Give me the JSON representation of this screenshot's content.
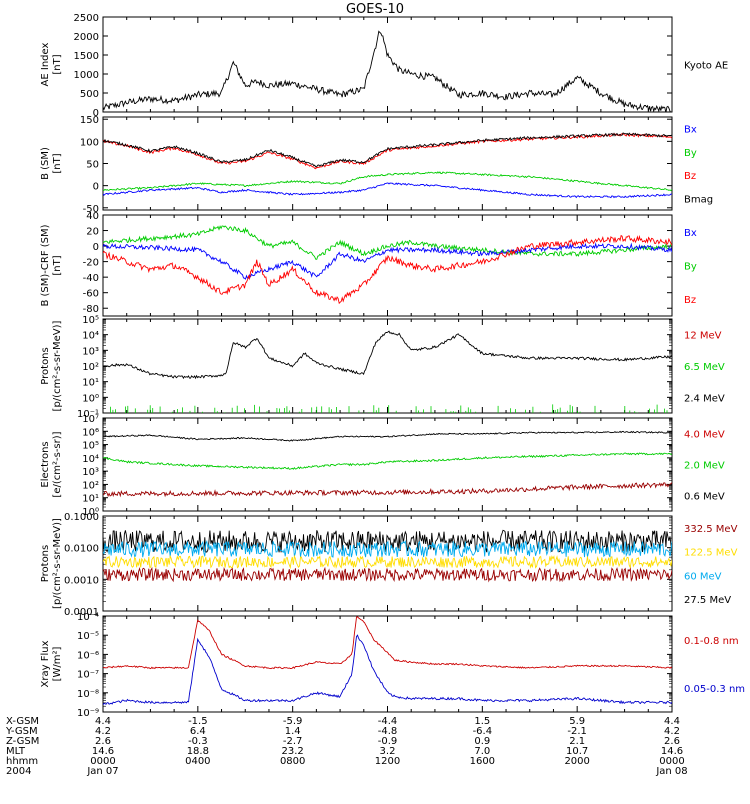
{
  "title": "GOES-10",
  "chart_data": {
    "type": "line",
    "x_ticks": [
      "0000",
      "0400",
      "0800",
      "1200",
      "1600",
      "2000",
      "0000"
    ],
    "x_dates": [
      "Jan 07",
      "Jan 08"
    ],
    "panels": [
      {
        "id": "ae",
        "ylabel": [
          "AE Index",
          "[nT]"
        ],
        "log": false,
        "ylim": [
          0,
          2500
        ],
        "ticks": [
          "2500",
          "2000",
          "1500",
          "1000",
          "500",
          "0"
        ],
        "tick_vals": [
          2500,
          2000,
          1500,
          1000,
          500,
          0
        ],
        "legend": [
          {
            "label": "Kyoto AE",
            "color": "#000000"
          }
        ],
        "series": [
          {
            "name": "Kyoto AE",
            "color": "#000000",
            "noise": 90,
            "x": [
              0,
              1,
              2,
              3,
              4,
              5,
              5.5,
              6,
              6.5,
              7,
              8,
              9,
              10,
              11,
              11.7,
              12,
              12.5,
              13,
              14,
              15,
              16,
              17,
              18,
              19,
              20,
              21,
              22,
              23,
              24
            ],
            "y": [
              100,
              250,
              350,
              300,
              450,
              500,
              1300,
              700,
              800,
              700,
              750,
              600,
              450,
              600,
              2200,
              1500,
              1100,
              1000,
              900,
              450,
              500,
              400,
              500,
              450,
              900,
              500,
              200,
              100,
              50
            ]
          }
        ]
      },
      {
        "id": "bsm",
        "ylabel": [
          "B (SM)",
          "[nT]"
        ],
        "log": false,
        "ylim": [
          -55,
          155
        ],
        "ticks": [
          "150",
          "100",
          "50",
          "0",
          "-50"
        ],
        "tick_vals": [
          150,
          100,
          50,
          0,
          -50
        ],
        "legend": [
          {
            "label": "Bx",
            "color": "#0000ff"
          },
          {
            "label": "By",
            "color": "#00cc00"
          },
          {
            "label": "Bz",
            "color": "#ff0000"
          },
          {
            "label": "Bmag",
            "color": "#000000"
          }
        ],
        "series": [
          {
            "name": "By",
            "color": "#00cc00",
            "noise": 2,
            "x": [
              0,
              2,
              4,
              6,
              8,
              10,
              11,
              12,
              14,
              16,
              18,
              20,
              22,
              24
            ],
            "y": [
              -10,
              -5,
              5,
              0,
              10,
              5,
              20,
              25,
              30,
              25,
              20,
              10,
              0,
              -10
            ]
          },
          {
            "name": "Bx",
            "color": "#0000ff",
            "noise": 2,
            "x": [
              0,
              2,
              4,
              5,
              6,
              8,
              10,
              11,
              12,
              14,
              16,
              18,
              20,
              22,
              24
            ],
            "y": [
              -20,
              -10,
              -5,
              -15,
              -10,
              -20,
              -15,
              -10,
              5,
              0,
              -10,
              -20,
              -25,
              -25,
              -20
            ]
          },
          {
            "name": "Bz",
            "color": "#ff0000",
            "noise": 3,
            "x": [
              0,
              1,
              2,
              3,
              4,
              5,
              6,
              7,
              8,
              9,
              10,
              11,
              12,
              13,
              14,
              16,
              18,
              20,
              22,
              24
            ],
            "y": [
              100,
              90,
              75,
              85,
              70,
              50,
              55,
              75,
              60,
              40,
              55,
              50,
              80,
              85,
              90,
              100,
              105,
              110,
              115,
              110
            ]
          },
          {
            "name": "Bmag",
            "color": "#000000",
            "noise": 3,
            "x": [
              0,
              1,
              2,
              3,
              4,
              5,
              6,
              7,
              8,
              9,
              10,
              11,
              12,
              13,
              14,
              16,
              18,
              20,
              22,
              24
            ],
            "y": [
              102,
              92,
              78,
              88,
              73,
              53,
              58,
              80,
              63,
              43,
              58,
              53,
              83,
              88,
              92,
              102,
              108,
              112,
              116,
              112
            ]
          }
        ]
      },
      {
        "id": "bsmcrf",
        "ylabel": [
          "B (SM)-CRF (SM)",
          "[nT]"
        ],
        "log": false,
        "ylim": [
          -90,
          40
        ],
        "ticks": [
          "40",
          "20",
          "0",
          "-20",
          "-40",
          "-60",
          "-80"
        ],
        "tick_vals": [
          40,
          20,
          0,
          -20,
          -40,
          -60,
          -80
        ],
        "legend": [
          {
            "label": "Bx",
            "color": "#0000ff"
          },
          {
            "label": "By",
            "color": "#00cc00"
          },
          {
            "label": "Bz",
            "color": "#ff0000"
          }
        ],
        "series": [
          {
            "name": "By",
            "color": "#00cc00",
            "noise": 3,
            "x": [
              0,
              2,
              4,
              5,
              6,
              7,
              8,
              9,
              10,
              11,
              12,
              13,
              14,
              16,
              18,
              20,
              22,
              24
            ],
            "y": [
              5,
              10,
              15,
              25,
              20,
              0,
              5,
              -15,
              5,
              -10,
              0,
              5,
              0,
              -5,
              -10,
              -10,
              -5,
              0
            ]
          },
          {
            "name": "Bx",
            "color": "#0000ff",
            "noise": 3,
            "x": [
              0,
              2,
              4,
              5,
              6,
              7,
              8,
              9,
              10,
              11,
              12,
              14,
              16,
              18,
              20,
              22,
              24
            ],
            "y": [
              0,
              -2,
              -5,
              -20,
              -40,
              -30,
              -20,
              -40,
              -10,
              -20,
              -5,
              -5,
              -10,
              -5,
              0,
              0,
              -5
            ]
          },
          {
            "name": "Bz",
            "color": "#ff0000",
            "noise": 4,
            "x": [
              0,
              1,
              2,
              3,
              4,
              5,
              6,
              6.5,
              7,
              8,
              9,
              10,
              11,
              12,
              13,
              14,
              16,
              18,
              20,
              22,
              24
            ],
            "y": [
              -10,
              -20,
              -30,
              -25,
              -40,
              -60,
              -50,
              -20,
              -50,
              -30,
              -60,
              -70,
              -50,
              -15,
              -25,
              -30,
              -20,
              0,
              5,
              10,
              5
            ]
          }
        ]
      },
      {
        "id": "protons-low",
        "ylabel": [
          "Protons",
          "[p/(cm²-s-sr-MeV)]"
        ],
        "log": true,
        "ylim": [
          -1,
          5
        ],
        "ticks": [
          "10⁵",
          "10⁴",
          "10³",
          "10²",
          "10¹",
          "10⁰",
          "10⁻¹"
        ],
        "tick_vals": [
          5,
          4,
          3,
          2,
          1,
          0,
          -1
        ],
        "legend": [
          {
            "label": "12 MeV",
            "color": "#cc0000"
          },
          {
            "label": "6.5 MeV",
            "color": "#00cc00"
          },
          {
            "label": "2.4 MeV",
            "color": "#000000"
          }
        ],
        "series": [
          {
            "name": "6.5 MeV",
            "color": "#00cc00",
            "spiky": true,
            "x": [
              0,
              24
            ],
            "y": [
              -1,
              -1
            ]
          },
          {
            "name": "2.4 MeV",
            "color": "#000000",
            "noise": 0.08,
            "x": [
              0,
              1,
              2,
              3,
              4,
              5,
              5.2,
              5.5,
              6,
              6.5,
              7,
              8,
              8.5,
              9,
              10,
              11,
              11.5,
              12,
              12.5,
              13,
              14,
              15,
              16,
              18,
              20,
              22,
              24
            ],
            "y": [
              2,
              2.1,
              1.5,
              1.3,
              1.3,
              1.4,
              1.6,
              3.5,
              3.2,
              3.8,
              2.5,
              2,
              2.8,
              2.2,
              1.8,
              1.5,
              3.5,
              4.2,
              4,
              3,
              3.2,
              4,
              2.8,
              2.5,
              2.5,
              2.4,
              2.6
            ]
          }
        ]
      },
      {
        "id": "electrons",
        "ylabel": [
          "Electrons",
          "[e/(cm²-s-sr)]"
        ],
        "log": true,
        "ylim": [
          0,
          7
        ],
        "ticks": [
          "10⁷",
          "10⁶",
          "10⁵",
          "10⁴",
          "10³",
          "10²",
          "10¹",
          "10⁰"
        ],
        "tick_vals": [
          7,
          6,
          5,
          4,
          3,
          2,
          1,
          0
        ],
        "legend": [
          {
            "label": "4.0 MeV",
            "color": "#cc0000"
          },
          {
            "label": "2.0 MeV",
            "color": "#00cc00"
          },
          {
            "label": "0.6 MeV",
            "color": "#000000"
          }
        ],
        "series": [
          {
            "name": "0.6 MeV",
            "color": "#000000",
            "noise": 0.05,
            "x": [
              0,
              2,
              4,
              6,
              8,
              10,
              12,
              14,
              16,
              18,
              20,
              22,
              24
            ],
            "y": [
              5.6,
              5.7,
              5.4,
              5.5,
              5.3,
              5.6,
              5.6,
              5.8,
              5.8,
              5.9,
              5.9,
              5.95,
              5.9
            ]
          },
          {
            "name": "2.0 MeV",
            "color": "#00cc00",
            "noise": 0.07,
            "x": [
              0,
              1,
              2,
              4,
              6,
              8,
              10,
              11,
              12,
              14,
              16,
              18,
              20,
              22,
              24
            ],
            "y": [
              4,
              3.7,
              3.6,
              3.4,
              3.3,
              3.2,
              3.5,
              3.5,
              3.7,
              3.8,
              4,
              4.1,
              4.2,
              4.3,
              4.3
            ]
          },
          {
            "name": "4.0 MeV",
            "color": "#990000",
            "noise": 0.18,
            "x": [
              0,
              6,
              12,
              16,
              20,
              24
            ],
            "y": [
              1.3,
              1.35,
              1.4,
              1.5,
              1.8,
              2
            ]
          }
        ]
      },
      {
        "id": "protons-high",
        "ylabel": [
          "Protons",
          "[p/(cm²-s-sr-MeV)]"
        ],
        "log": true,
        "ylim": [
          -4,
          -1
        ],
        "ticks": [
          "0.1000",
          "0.0100",
          "0.0010",
          "0.0001"
        ],
        "tick_vals": [
          -1,
          -2,
          -3,
          -4
        ],
        "legend": [
          {
            "label": "332.5 MeV",
            "color": "#990000"
          },
          {
            "label": "122.5 MeV",
            "color": "#ffdd00"
          },
          {
            "label": "60 MeV",
            "color": "#00aaee"
          },
          {
            "label": "27.5 MeV",
            "color": "#000000"
          }
        ],
        "series": [
          {
            "name": "27.5 MeV",
            "color": "#000000",
            "noise": 0.35,
            "x": [
              0,
              24
            ],
            "y": [
              -1.8,
              -1.8
            ]
          },
          {
            "name": "60 MeV",
            "color": "#00aaee",
            "noise": 0.25,
            "x": [
              0,
              24
            ],
            "y": [
              -2.05,
              -2.05
            ]
          },
          {
            "name": "122.5 MeV",
            "color": "#ffdd00",
            "noise": 0.18,
            "x": [
              0,
              24
            ],
            "y": [
              -2.45,
              -2.45
            ]
          },
          {
            "name": "332.5 MeV",
            "color": "#990000",
            "noise": 0.2,
            "x": [
              0,
              24
            ],
            "y": [
              -2.85,
              -2.85
            ]
          }
        ]
      },
      {
        "id": "xray",
        "ylabel": [
          "Xray Flux",
          "[W/m²]"
        ],
        "log": true,
        "ylim": [
          -9,
          -4
        ],
        "ticks": [
          "10⁻⁴",
          "10⁻⁵",
          "10⁻⁶",
          "10⁻⁷",
          "10⁻⁸",
          "10⁻⁹"
        ],
        "tick_vals": [
          -4,
          -5,
          -6,
          -7,
          -8,
          -9
        ],
        "legend": [
          {
            "label": "0.1-0.8 nm",
            "color": "#cc0000"
          },
          {
            "label": "0.05-0.3 nm",
            "color": "#0000cc"
          }
        ],
        "series": [
          {
            "name": "0.1-0.8 nm",
            "color": "#cc0000",
            "noise": 0.04,
            "x": [
              0,
              1,
              2,
              3,
              3.6,
              4.0,
              4.5,
              5,
              6,
              7,
              8,
              9,
              10,
              10.5,
              10.7,
              11,
              11.4,
              12,
              12.3,
              13,
              14,
              15,
              16,
              18,
              20,
              22,
              24
            ],
            "y": [
              -6.7,
              -6.6,
              -6.7,
              -6.7,
              -6.7,
              -4.2,
              -4.8,
              -6.0,
              -6.6,
              -6.7,
              -6.7,
              -6.4,
              -6.5,
              -6.0,
              -4.0,
              -4.3,
              -5.2,
              -5.9,
              -6.3,
              -6.4,
              -6.5,
              -6.5,
              -6.6,
              -6.7,
              -6.6,
              -6.6,
              -6.7
            ]
          },
          {
            "name": "0.05-0.3 nm",
            "color": "#0000cc",
            "noise": 0.06,
            "x": [
              0,
              1,
              2,
              3,
              3.6,
              4.0,
              4.5,
              5,
              6,
              7,
              8,
              9,
              10,
              10.5,
              10.7,
              11,
              11.4,
              12,
              12.3,
              13,
              14,
              15,
              16,
              18,
              20,
              22,
              24
            ],
            "y": [
              -8.6,
              -8.4,
              -8.5,
              -8.5,
              -8.5,
              -5.2,
              -6.2,
              -7.8,
              -8.4,
              -8.4,
              -8.4,
              -8.0,
              -8.2,
              -7.0,
              -5.0,
              -5.5,
              -6.8,
              -8.0,
              -8.2,
              -8.3,
              -8.3,
              -8.3,
              -8.4,
              -8.4,
              -8.3,
              -8.5,
              -8.5
            ]
          }
        ]
      }
    ]
  },
  "coords": {
    "labels": [
      "X-GSM",
      "Y-GSM",
      "Z-GSM",
      "MLT",
      "hhmm",
      "2004"
    ],
    "rows": [
      [
        "4.4",
        "-1.5",
        "-5.9",
        "-4.4",
        "1.5",
        "5.9",
        "4.4"
      ],
      [
        "4.2",
        "6.4",
        "1.4",
        "-4.8",
        "-6.4",
        "-2.1",
        "4.2"
      ],
      [
        "2.6",
        "-0.3",
        "-2.7",
        "-0.9",
        "0.9",
        "2.1",
        "2.6"
      ],
      [
        "14.6",
        "18.8",
        "23.2",
        "3.2",
        "7.0",
        "10.7",
        "14.6"
      ],
      [
        "0000",
        "0400",
        "0800",
        "1200",
        "1600",
        "2000",
        "0000"
      ]
    ]
  }
}
